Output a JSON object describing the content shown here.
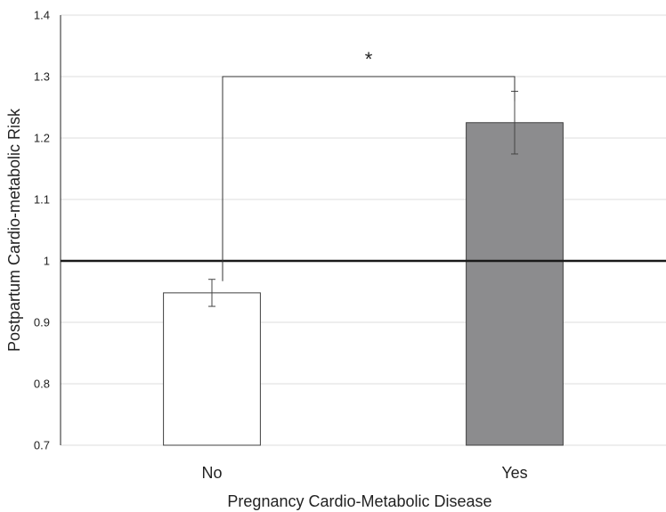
{
  "chart_data": {
    "type": "bar",
    "categories": [
      "No",
      "Yes"
    ],
    "values": [
      0.948,
      1.225
    ],
    "error": [
      0.022,
      0.051
    ],
    "bar_colors": [
      "#ffffff",
      "#8c8c8e"
    ],
    "bar_edge": "#404040",
    "reference_line": 1,
    "significance": "*",
    "xlabel": "Pregnancy Cardio-Metabolic Disease",
    "ylabel": "Postpartum Cardio-metabolic Risk",
    "ylim": [
      0.7,
      1.4
    ],
    "yticks": [
      "0.7",
      "0.8",
      "0.9",
      "1",
      "1.1",
      "1.2",
      "1.3",
      "1.4"
    ],
    "grid": true
  }
}
